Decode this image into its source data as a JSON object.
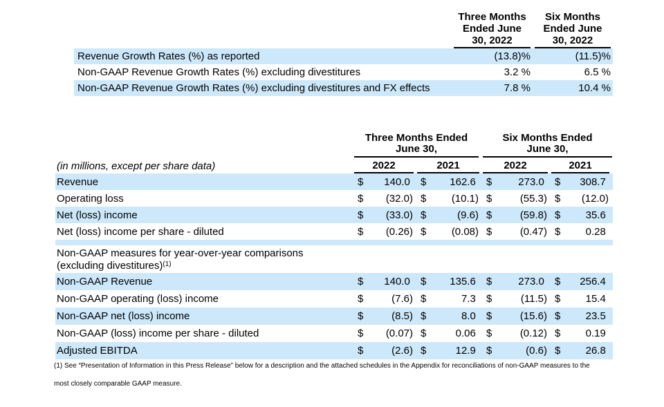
{
  "colors": {
    "row_highlight": "#cce8fa",
    "text": "#000000",
    "rule": "#000000"
  },
  "growth_table": {
    "columns": [
      {
        "lines": [
          "Three Months",
          "Ended June",
          "30, 2022"
        ]
      },
      {
        "lines": [
          "Six Months",
          "Ended June",
          "30, 2022"
        ]
      }
    ],
    "rows": [
      {
        "label": "Revenue Growth Rates (%) as reported",
        "three_months": "(13.8)%",
        "six_months": "(11.5)%"
      },
      {
        "label": "Non-GAAP Revenue Growth Rates (%) excluding divestitures",
        "three_months": "3.2 %",
        "six_months": "6.5 %"
      },
      {
        "label": "Non-GAAP Revenue Growth Rates (%) excluding divestitures and FX effects",
        "three_months": "7.8 %",
        "six_months": "10.4 %"
      }
    ]
  },
  "financial_table": {
    "units_note": "(in millions, except per share data)",
    "currency_symbol": "$",
    "group_headers": [
      {
        "line1": "Three Months Ended",
        "line2": "June 30,"
      },
      {
        "line1": "Six Months Ended",
        "line2": "June 30,"
      }
    ],
    "year_headers": [
      "2022",
      "2021",
      "2022",
      "2021"
    ],
    "gaap_rows": [
      {
        "label": "Revenue",
        "values": [
          "140.0 ",
          "162.6 ",
          "273.0 ",
          "308.7 "
        ]
      },
      {
        "label": "Operating loss",
        "values": [
          "(32.0)",
          "(10.1)",
          "(55.3)",
          "(12.0)"
        ]
      },
      {
        "label": "Net (loss) income",
        "values": [
          "(33.0)",
          "(9.6)",
          "(59.8)",
          "35.6 "
        ]
      },
      {
        "label": "Net (loss) income per share - diluted",
        "values": [
          "(0.26)",
          "(0.08)",
          "(0.47)",
          "0.28 "
        ]
      }
    ],
    "section_header": {
      "line1": "Non-GAAP measures for year-over-year comparisons",
      "line2": "(excluding divestitures)",
      "footnote_ref": "(1)"
    },
    "non_gaap_rows": [
      {
        "label": "Non-GAAP Revenue",
        "values": [
          "140.0 ",
          "135.6 ",
          "273.0 ",
          "256.4 "
        ]
      },
      {
        "label": "Non-GAAP operating (loss) income",
        "values": [
          "(7.6)",
          "7.3 ",
          "(11.5)",
          "15.4 "
        ]
      },
      {
        "label": "Non-GAAP net (loss) income",
        "values": [
          "(8.5)",
          "8.0 ",
          "(15.6)",
          "23.5 "
        ]
      },
      {
        "label": "Non-GAAP (loss) income per share - diluted",
        "values": [
          "(0.07)",
          "0.06 ",
          "(0.12)",
          "0.19 "
        ]
      },
      {
        "label": "Adjusted EBITDA",
        "values": [
          "(2.6)",
          "12.9 ",
          "(0.6)",
          "26.8 "
        ]
      }
    ]
  },
  "footnote": {
    "line1": "(1) See “Presentation of Information in this Press Release” below for a description and the attached schedules in the Appendix for reconciliations of non-GAAP measures to the",
    "line2": "most closely comparable GAAP measure."
  }
}
